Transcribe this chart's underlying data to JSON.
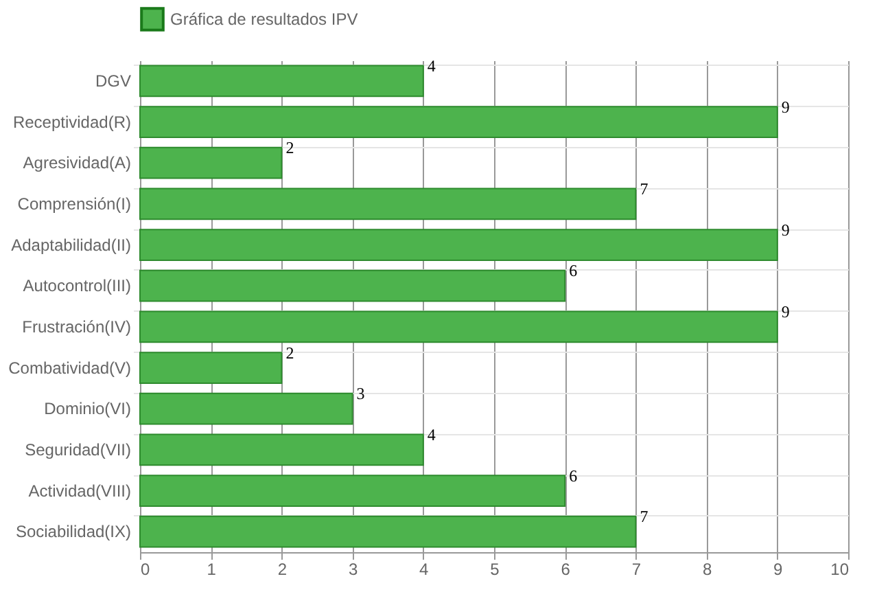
{
  "chart_data": {
    "type": "bar",
    "orientation": "horizontal",
    "categories": [
      "DGV",
      "Receptividad(R)",
      "Agresividad(A)",
      "Comprensión(I)",
      "Adaptabilidad(II)",
      "Autocontrol(III)",
      "Frustración(IV)",
      "Combatividad(V)",
      "Dominio(VI)",
      "Seguridad(VII)",
      "Actividad(VIII)",
      "Sociabilidad(IX)"
    ],
    "series": [
      {
        "name": "Gráfica de resultados IPV",
        "color": "#4db34d",
        "values": [
          4,
          9,
          2,
          7,
          9,
          6,
          9,
          2,
          3,
          4,
          6,
          7
        ]
      }
    ],
    "xlim": [
      0,
      10
    ],
    "xticks": [
      0,
      1,
      2,
      3,
      4,
      5,
      6,
      7,
      8,
      9,
      10
    ],
    "grid": true,
    "legend": "top",
    "data_labels": true
  }
}
